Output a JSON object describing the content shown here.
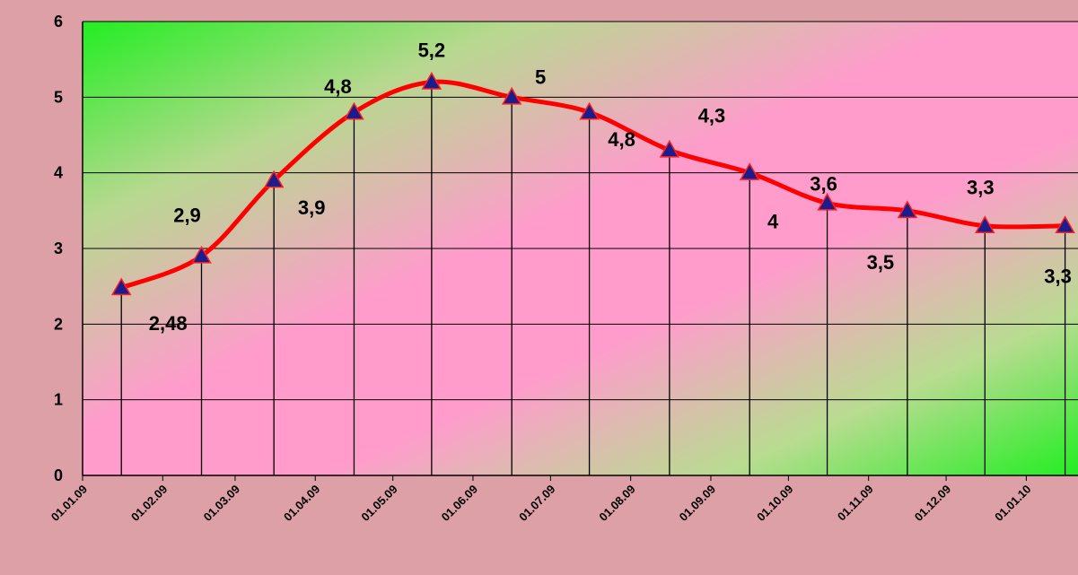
{
  "chart_data": {
    "type": "line",
    "title": "",
    "xlabel": "",
    "ylabel": "",
    "ylim": [
      0,
      6
    ],
    "yticks": [
      0,
      1,
      2,
      3,
      4,
      5,
      6
    ],
    "grid": true,
    "legend": "none",
    "x_tick_labels": [
      "01.01.09",
      "01.02.09",
      "01.03.09",
      "01.04.09",
      "01.05.09",
      "01.06.09",
      "01.07.09",
      "01.08.09",
      "01.09.09",
      "01.10.09",
      "01.11.09",
      "01.12.09",
      "01.01.10"
    ],
    "series": [
      {
        "color": "#ff0000",
        "marker_color": "#1c1c8c",
        "points": [
          {
            "date": "2009-01-16",
            "value": 2.48,
            "label": "2,48"
          },
          {
            "date": "2009-02-16",
            "value": 2.9,
            "label": "2,9"
          },
          {
            "date": "2009-03-16",
            "value": 3.9,
            "label": "3,9"
          },
          {
            "date": "2009-04-16",
            "value": 4.8,
            "label": "4,8"
          },
          {
            "date": "2009-05-16",
            "value": 5.2,
            "label": "5,2"
          },
          {
            "date": "2009-06-16",
            "value": 5.0,
            "label": "5"
          },
          {
            "date": "2009-07-16",
            "value": 4.8,
            "label": "4,8"
          },
          {
            "date": "2009-08-16",
            "value": 4.3,
            "label": "4,3"
          },
          {
            "date": "2009-09-16",
            "value": 4.0,
            "label": "4"
          },
          {
            "date": "2009-10-16",
            "value": 3.6,
            "label": "3,6"
          },
          {
            "date": "2009-11-16",
            "value": 3.5,
            "label": "3,5"
          },
          {
            "date": "2009-12-16",
            "value": 3.3,
            "label": "3,3"
          },
          {
            "date": "2010-01-16",
            "value": 3.3,
            "label": "3,3"
          }
        ]
      }
    ]
  }
}
